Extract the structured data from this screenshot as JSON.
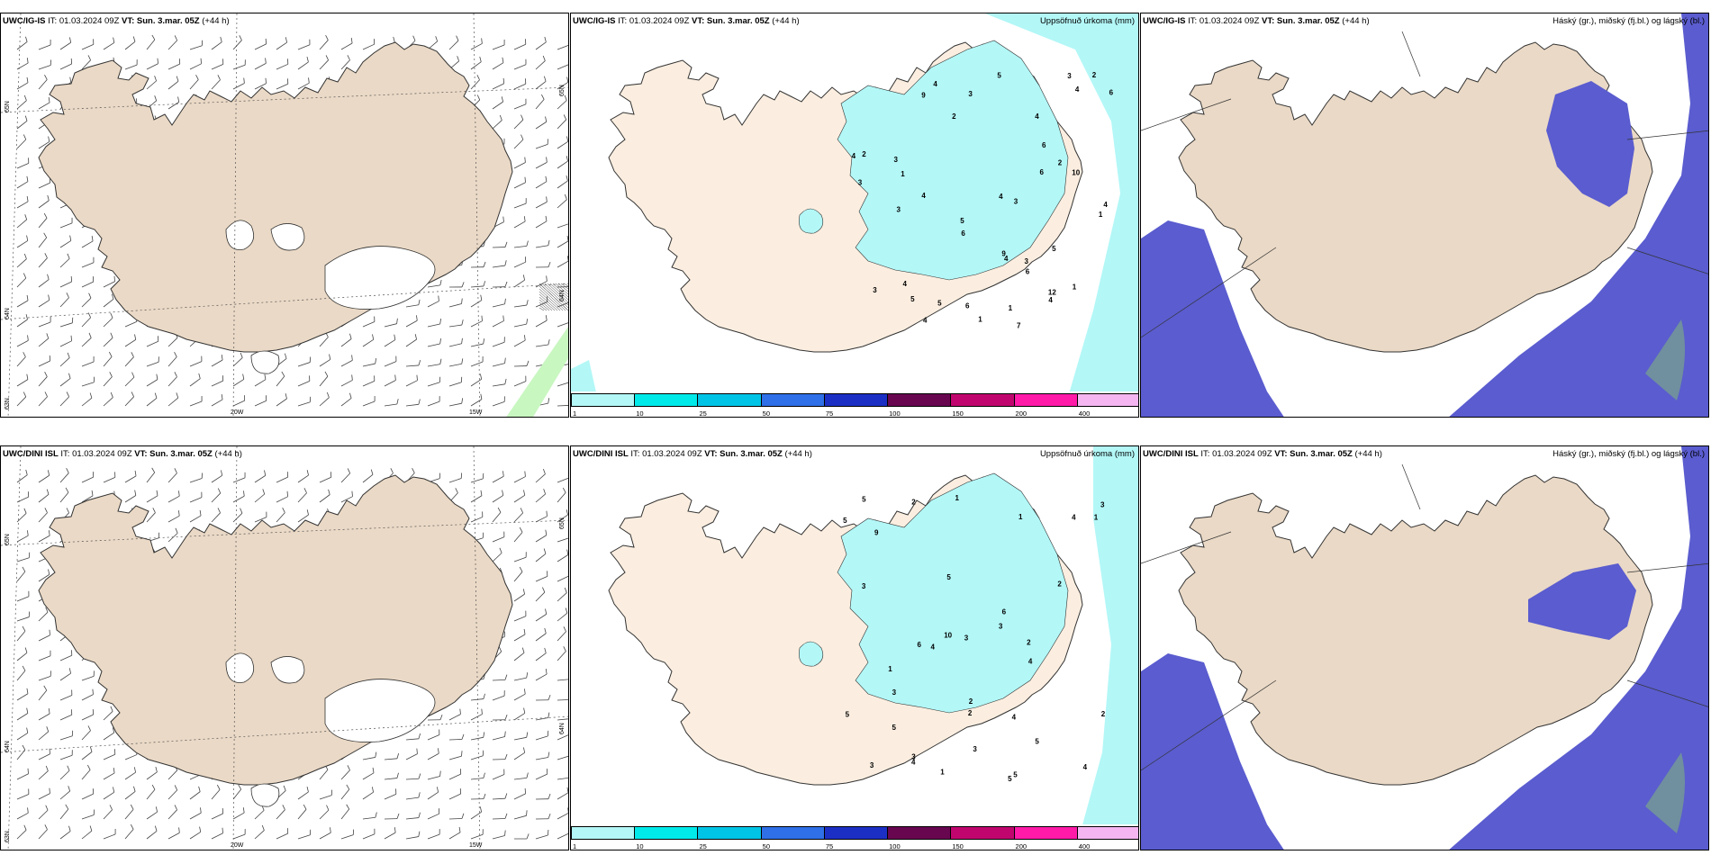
{
  "panels": [
    {
      "model": "UWC/IG-IS",
      "it_label": "IT:",
      "it_value": "01.03.2024 09Z",
      "vt_label": "VT:",
      "vt_value": "Sun. 3.mar. 05Z",
      "lead": "(+44 h)",
      "right_title": ""
    },
    {
      "model": "UWC/IG-IS",
      "it_label": "IT:",
      "it_value": "01.03.2024 09Z",
      "vt_label": "VT:",
      "vt_value": "Sun. 3.mar. 05Z",
      "lead": "(+44 h)",
      "right_title": "Uppsöfnuð úrkoma (mm)"
    },
    {
      "model": "UWC/IG-IS",
      "it_label": "IT:",
      "it_value": "01.03.2024 09Z",
      "vt_label": "VT:",
      "vt_value": "Sun. 3.mar. 05Z",
      "lead": "(+44 h)",
      "right_title": "Háský (gr.), miðský (fj.bl.) og lágský (bl.)"
    },
    {
      "model": "UWC/DINI ISL",
      "it_label": "IT:",
      "it_value": "01.03.2024 09Z",
      "vt_label": "VT:",
      "vt_value": "Sun. 3.mar. 05Z",
      "lead": "(+44 h)",
      "right_title": ""
    },
    {
      "model": "UWC/DINI ISL",
      "it_label": "IT:",
      "it_value": "01.03.2024 09Z",
      "vt_label": "VT:",
      "vt_value": "Sun. 3.mar. 05Z",
      "lead": "(+44 h)",
      "right_title": "Uppsöfnuð úrkoma (mm)"
    },
    {
      "model": "UWC/DINI ISL",
      "it_label": "IT:",
      "it_value": "01.03.2024 09Z",
      "vt_label": "VT:",
      "vt_value": "Sun. 3.mar. 05Z",
      "lead": "(+44 h)",
      "right_title": "Háský (gr.), miðský (fj.bl.) og lágský (bl.)"
    }
  ],
  "grid_labels": {
    "lat_65": "65N",
    "lat_64": "64N",
    "lat_63": "63N",
    "lon_20w": "20W",
    "lon_15w": "15W"
  },
  "colorbar": {
    "ticks": [
      "1",
      "10",
      "25",
      "50",
      "75",
      "100",
      "150",
      "200",
      "400"
    ],
    "colors": [
      "#b3f7f7",
      "#00eaea",
      "#00c4e6",
      "#2f6fe8",
      "#1c2fc4",
      "#680650",
      "#c0066e",
      "#ff1aa8",
      "#f4b5f0"
    ]
  },
  "precip_numbers_top": [
    "7",
    "9",
    "4",
    "3",
    "2",
    "1",
    "1",
    "4",
    "6",
    "5",
    "3",
    "4",
    "5",
    "9",
    "6",
    "3",
    "3",
    "4",
    "5",
    "10",
    "12",
    "4",
    "4",
    "4",
    "3",
    "6",
    "3",
    "1",
    "1",
    "2",
    "6",
    "2",
    "4",
    "5",
    "4",
    "6",
    "5",
    "2",
    "4",
    "3",
    "3",
    "4",
    "6",
    "1"
  ],
  "precip_numbers_bottom": [
    "1",
    "5",
    "3",
    "5",
    "2",
    "9",
    "6",
    "4",
    "1",
    "5",
    "4",
    "3",
    "10",
    "2",
    "1",
    "3",
    "3",
    "4",
    "4",
    "5",
    "4",
    "3",
    "6",
    "3",
    "2",
    "1",
    "5",
    "3",
    "5",
    "4",
    "3",
    "5",
    "2",
    "1",
    "5",
    "2",
    "2"
  ],
  "colors": {
    "land_wind": "#ead9c6",
    "land_precip": "#fbeee0",
    "precip_light": "#b3f7f7",
    "cloud_low": "#5a5ccf",
    "cloud_mid": "#3a86e0",
    "cloud_high": "#7fb07f"
  }
}
